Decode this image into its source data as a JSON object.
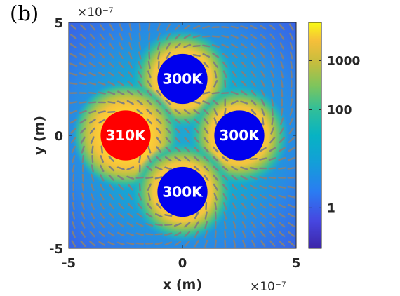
{
  "panel_label": "(b)",
  "chart_data": {
    "type": "heatmap",
    "title": "",
    "xlabel": "x (m)",
    "ylabel": "y (m)",
    "xlim": [
      -5e-07,
      5e-07
    ],
    "ylim": [
      -5e-07,
      5e-07
    ],
    "x_ticks": [
      {
        "value": -5e-07,
        "label": "-5"
      },
      {
        "value": 0,
        "label": "0"
      },
      {
        "value": 5e-07,
        "label": "5"
      }
    ],
    "y_ticks": [
      {
        "value": -5e-07,
        "label": "-5"
      },
      {
        "value": 0,
        "label": "0"
      },
      {
        "value": 5e-07,
        "label": "5"
      }
    ],
    "x_exponent_label": "×10⁻⁷",
    "y_exponent_label": "×10⁻⁷",
    "colorbar": {
      "scale": "log",
      "range": [
        0.15,
        6000
      ],
      "colormap": "parula",
      "ticks": [
        {
          "value": 1,
          "label": "1"
        },
        {
          "value": 100,
          "label": "100"
        },
        {
          "value": 1000,
          "label": "1000"
        }
      ]
    },
    "particles": [
      {
        "x": 0,
        "y": 2.5e-07,
        "radius": 1.1e-07,
        "label": "300K",
        "color": "#0000ee"
      },
      {
        "x": -2.5e-07,
        "y": 0,
        "radius": 1.1e-07,
        "label": "310K",
        "color": "#ff0000"
      },
      {
        "x": 2.5e-07,
        "y": 0,
        "radius": 1.1e-07,
        "label": "300K",
        "color": "#0000ee"
      },
      {
        "x": 0,
        "y": -2.5e-07,
        "radius": 1.1e-07,
        "label": "300K",
        "color": "#0000ee"
      }
    ],
    "vector_field": "quiver",
    "vector_color": "#808080",
    "grid": false
  }
}
